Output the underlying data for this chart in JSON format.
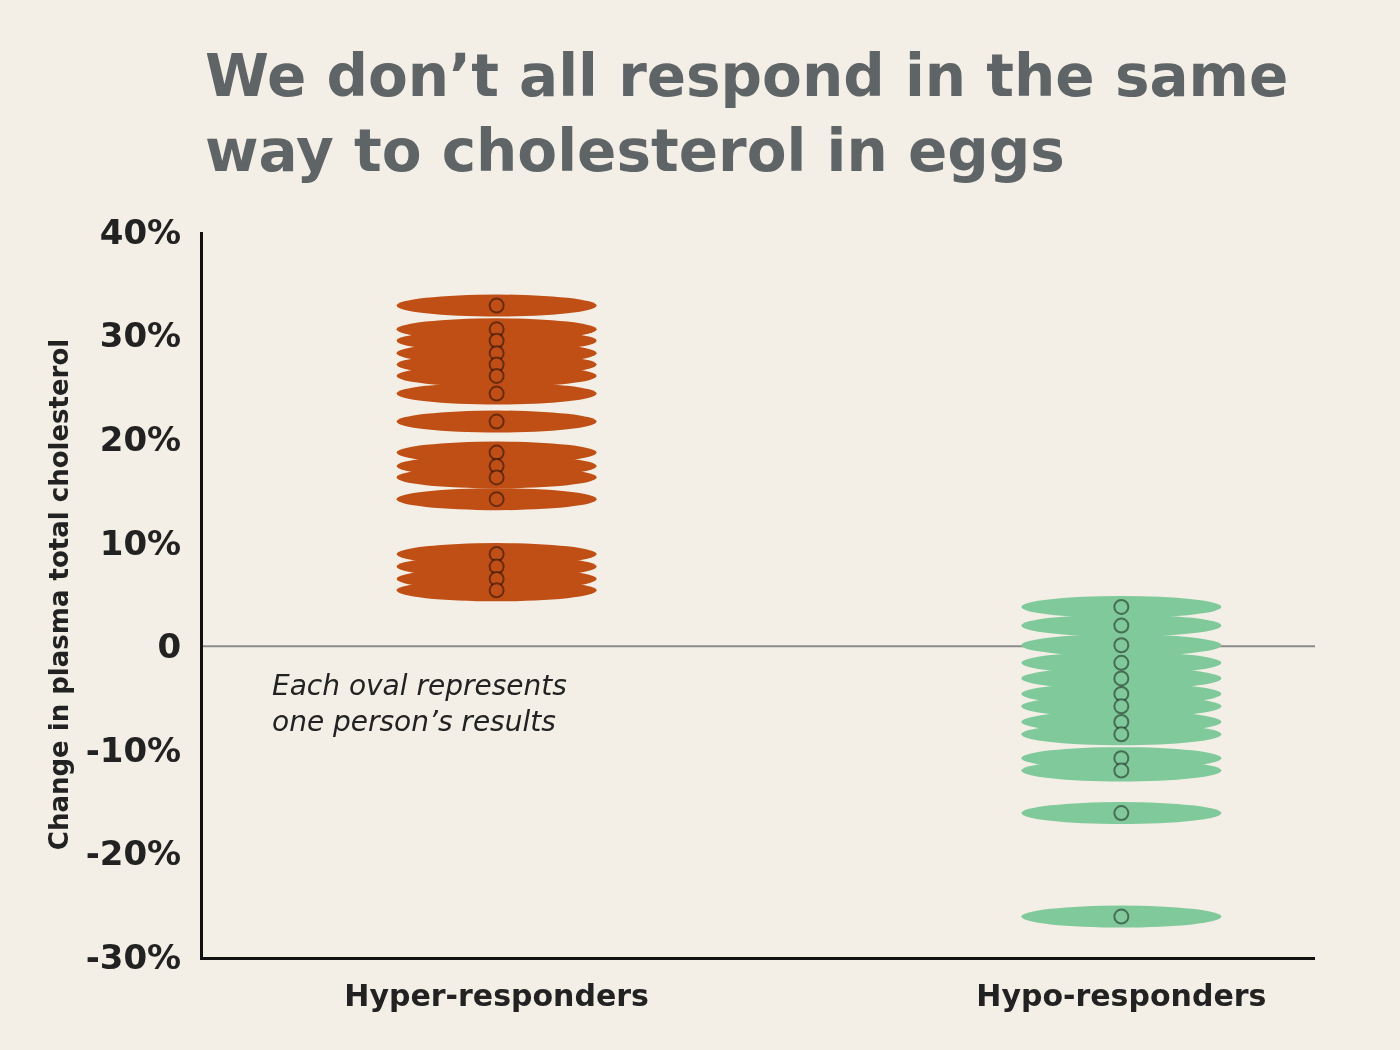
{
  "chart_data": {
    "type": "scatter",
    "title": "We don’t all respond in the same way to cholesterol in eggs",
    "ylabel": "Change in plasma total cholesterol",
    "categories": [
      "Hyper-responders",
      "Hypo-responders"
    ],
    "series": [
      {
        "color": "#c04f15",
        "x": [
          "Hyper-responders",
          "Hyper-responders",
          "Hyper-responders",
          "Hyper-responders",
          "Hyper-responders",
          "Hyper-responders",
          "Hyper-responders",
          "Hyper-responders",
          "Hyper-responders",
          "Hyper-responders",
          "Hyper-responders",
          "Hyper-responders",
          "Hyper-responders",
          "Hyper-responders",
          "Hyper-responders",
          "Hyper-responders"
        ],
        "values": [
          32.9,
          30.6,
          29.5,
          28.3,
          27.2,
          26.1,
          24.4,
          21.7,
          18.7,
          17.4,
          16.3,
          14.2,
          8.9,
          7.7,
          6.5,
          5.4
        ]
      },
      {
        "color": "#80c99b",
        "x": [
          "Hypo-responders",
          "Hypo-responders",
          "Hypo-responders",
          "Hypo-responders",
          "Hypo-responders",
          "Hypo-responders",
          "Hypo-responders",
          "Hypo-responders",
          "Hypo-responders",
          "Hypo-responders",
          "Hypo-responders",
          "Hypo-responders",
          "Hypo-responders"
        ],
        "values": [
          3.8,
          2.0,
          0.1,
          -1.6,
          -3.1,
          -4.6,
          -5.8,
          -7.3,
          -8.5,
          -10.8,
          -12.0,
          -16.1,
          -26.1
        ]
      }
    ],
    "ylim": [
      -30,
      40
    ],
    "yticks": [
      {
        "value": -30,
        "label": "-30%"
      },
      {
        "value": -20,
        "label": "-20%"
      },
      {
        "value": -10,
        "label": "-10%"
      },
      0,
      {
        "value": 10,
        "label": "10%"
      },
      {
        "value": 20,
        "label": "20%"
      },
      {
        "value": 30,
        "label": "30%"
      },
      {
        "value": 40,
        "label": "40%"
      }
    ],
    "ref_lines": [
      {
        "axis": "y",
        "value": 0,
        "color": "#8c8c8c"
      }
    ],
    "annotations": [
      "Each oval represents one person’s results"
    ],
    "grid": false
  }
}
